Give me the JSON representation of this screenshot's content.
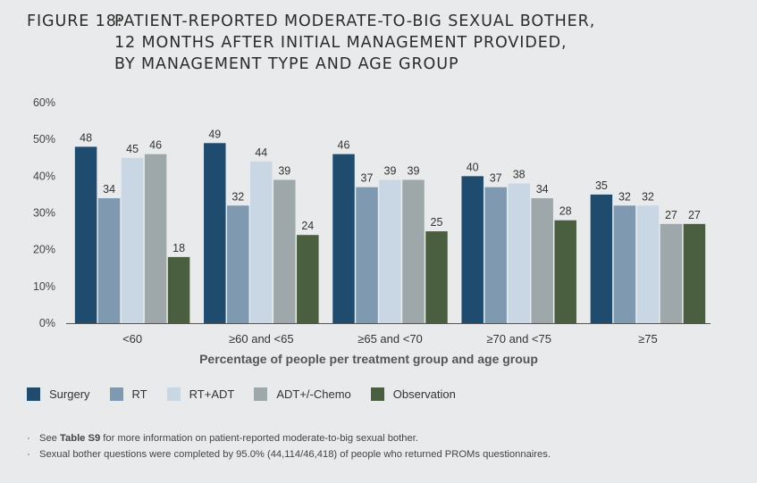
{
  "figure": {
    "label": "FIGURE 18:",
    "title_lines": [
      "PATIENT-REPORTED MODERATE-TO-BIG SEXUAL BOTHER,",
      "12 MONTHS AFTER INITIAL MANAGEMENT PROVIDED,",
      "BY MANAGEMENT TYPE AND AGE GROUP"
    ]
  },
  "chart_data": {
    "type": "bar",
    "title": "PATIENT-REPORTED MODERATE-TO-BIG SEXUAL BOTHER, 12 MONTHS AFTER INITIAL MANAGEMENT PROVIDED, BY MANAGEMENT TYPE AND AGE GROUP",
    "xlabel": "Percentage of people per treatment group and age group",
    "ylabel": "",
    "ylim": [
      0,
      60
    ],
    "yticks": [
      "0%",
      "10%",
      "20%",
      "30%",
      "40%",
      "50%",
      "60%"
    ],
    "categories": [
      "<60",
      "≥60 and <65",
      "≥65 and <70",
      "≥70 and <75",
      "≥75"
    ],
    "series": [
      {
        "name": "Surgery",
        "color": "#1e4b6e",
        "values": [
          48,
          49,
          46,
          40,
          35
        ]
      },
      {
        "name": "RT",
        "color": "#7f99b0",
        "values": [
          34,
          32,
          37,
          37,
          32
        ]
      },
      {
        "name": "RT+ADT",
        "color": "#c9d7e5",
        "values": [
          45,
          44,
          39,
          38,
          32
        ]
      },
      {
        "name": "ADT+/-Chemo",
        "color": "#9ea8aa",
        "values": [
          46,
          39,
          39,
          34,
          27
        ]
      },
      {
        "name": "Observation",
        "color": "#4a5e40",
        "values": [
          18,
          24,
          25,
          28,
          27
        ]
      }
    ],
    "legend_position": "bottom-left",
    "grid": false
  },
  "notes": {
    "bullet": "·",
    "line1_prefix": "See ",
    "line1_bold": "Table S9",
    "line1_suffix": " for more information on patient-reported moderate-to-big sexual bother.",
    "line2": "Sexual bother questions were completed by 95.0% (44,114/46,418) of people who returned PROMs questionnaires."
  }
}
